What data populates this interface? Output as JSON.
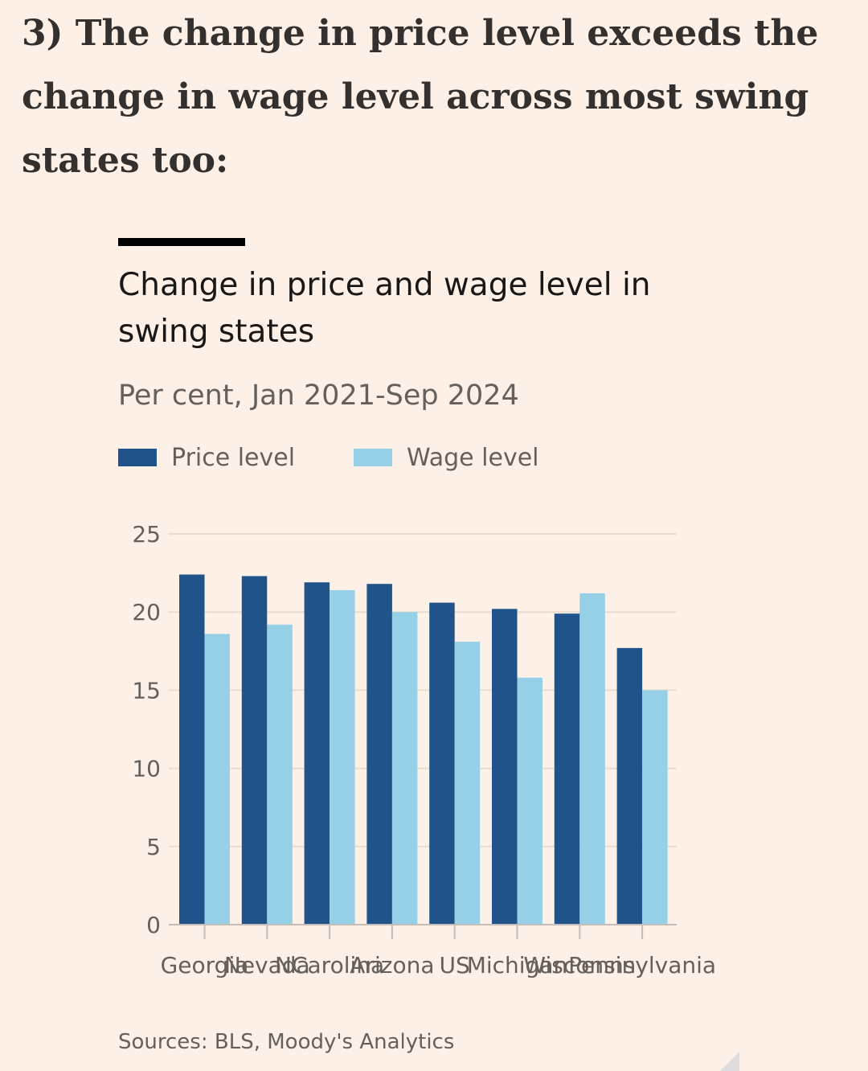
{
  "headline": "3) The change in price level exceeds the change in wage level across most swing states too:",
  "source": "Sources: BLS, Moody's Analytics",
  "colors": {
    "price": "#205389",
    "wage": "#96d0e6",
    "grid": "#e8dcd2",
    "axis": "#c7bdb6",
    "text": "#66605c"
  },
  "chart_data": {
    "type": "bar",
    "title": "Change in price and wage level in swing states",
    "subtitle": "Per cent, Jan 2021-Sep 2024",
    "xlabel": "",
    "ylabel": "",
    "ylim": [
      0,
      25
    ],
    "yticks": [
      0,
      5,
      10,
      15,
      20,
      25
    ],
    "grid": true,
    "legend_position": "top-left",
    "categories": [
      "Georgia",
      "Nevada",
      "NCarolina",
      "Arizona",
      "US",
      "Michigan",
      "Wisconsin",
      "Pennsylvania"
    ],
    "series": [
      {
        "name": "Price level",
        "values": [
          22.4,
          22.3,
          21.9,
          21.8,
          20.6,
          20.2,
          19.9,
          17.7
        ]
      },
      {
        "name": "Wage level",
        "values": [
          18.6,
          19.2,
          21.4,
          20.0,
          18.1,
          15.8,
          21.2,
          15.0
        ]
      }
    ]
  }
}
